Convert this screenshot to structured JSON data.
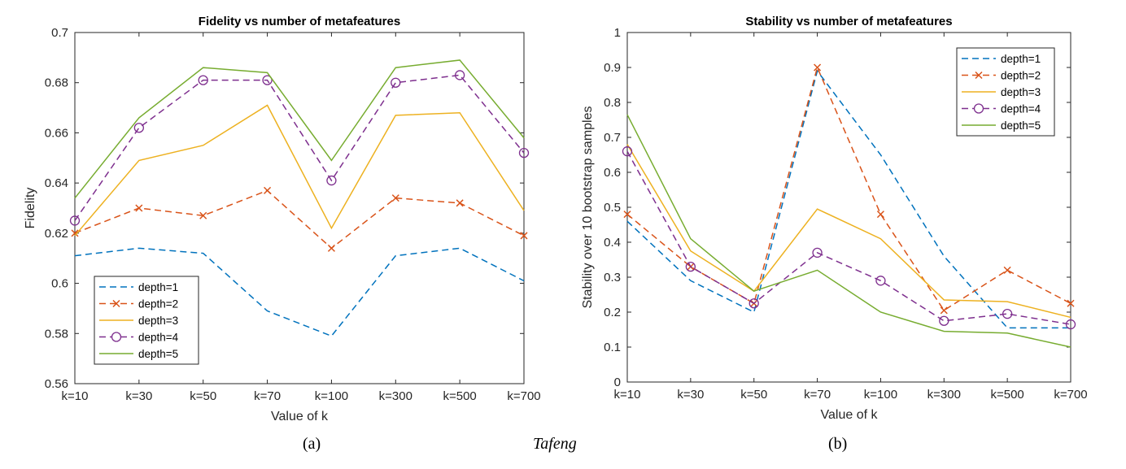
{
  "figure_caption": "Tafeng",
  "chart_data": [
    {
      "type": "line",
      "id": "a",
      "panel_label": "(a)",
      "title": "Fidelity vs number of metafeatures",
      "xlabel": "Value of k",
      "ylabel": "Fidelity",
      "categories": [
        "k=10",
        "k=30",
        "k=50",
        "k=70",
        "k=100",
        "k=300",
        "k=500",
        "k=700"
      ],
      "ylim": [
        0.56,
        0.7
      ],
      "yticks": [
        0.56,
        0.58,
        0.6,
        0.62,
        0.64,
        0.66,
        0.68,
        0.7
      ],
      "ytick_labels": [
        "0.56",
        "0.58",
        "0.6",
        "0.62",
        "0.64",
        "0.66",
        "0.68",
        "0.7"
      ],
      "legend_location": "bottom-left",
      "series": [
        {
          "name": "depth=1",
          "color": "#0072BD",
          "dash": "dashed",
          "marker": "none",
          "values": [
            0.611,
            0.614,
            0.612,
            0.589,
            0.579,
            0.611,
            0.614,
            0.601
          ]
        },
        {
          "name": "depth=2",
          "color": "#D95319",
          "dash": "dashed",
          "marker": "x",
          "values": [
            0.62,
            0.63,
            0.627,
            0.637,
            0.614,
            0.634,
            0.632,
            0.619
          ]
        },
        {
          "name": "depth=3",
          "color": "#EDB120",
          "dash": "solid",
          "marker": "none",
          "values": [
            0.619,
            0.649,
            0.655,
            0.671,
            0.622,
            0.667,
            0.668,
            0.629
          ]
        },
        {
          "name": "depth=4",
          "color": "#7E2F8E",
          "dash": "dashed",
          "marker": "o",
          "values": [
            0.625,
            0.662,
            0.681,
            0.681,
            0.641,
            0.68,
            0.683,
            0.652
          ]
        },
        {
          "name": "depth=5",
          "color": "#77AC30",
          "dash": "solid",
          "marker": "none",
          "values": [
            0.634,
            0.666,
            0.686,
            0.684,
            0.649,
            0.686,
            0.689,
            0.658
          ]
        }
      ]
    },
    {
      "type": "line",
      "id": "b",
      "panel_label": "(b)",
      "title": "Stability vs number of metafeatures",
      "xlabel": "Value of k",
      "ylabel": "Stability over 10 bootstrap samples",
      "categories": [
        "k=10",
        "k=30",
        "k=50",
        "k=70",
        "k=100",
        "k=300",
        "k=500",
        "k=700"
      ],
      "ylim": [
        0,
        1
      ],
      "yticks": [
        0,
        0.1,
        0.2,
        0.3,
        0.4,
        0.5,
        0.6,
        0.7,
        0.8,
        0.9,
        1
      ],
      "ytick_labels": [
        "0",
        "0.1",
        "0.2",
        "0.3",
        "0.4",
        "0.5",
        "0.6",
        "0.7",
        "0.8",
        "0.9",
        "1"
      ],
      "legend_location": "top-right",
      "series": [
        {
          "name": "depth=1",
          "color": "#0072BD",
          "dash": "dashed",
          "marker": "none",
          "values": [
            0.46,
            0.29,
            0.2,
            0.89,
            0.65,
            0.36,
            0.155,
            0.155
          ]
        },
        {
          "name": "depth=2",
          "color": "#D95319",
          "dash": "dashed",
          "marker": "x",
          "values": [
            0.48,
            0.33,
            0.225,
            0.9,
            0.48,
            0.205,
            0.32,
            0.225
          ]
        },
        {
          "name": "depth=3",
          "color": "#EDB120",
          "dash": "solid",
          "marker": "none",
          "values": [
            0.68,
            0.375,
            0.26,
            0.495,
            0.41,
            0.235,
            0.23,
            0.185
          ]
        },
        {
          "name": "depth=4",
          "color": "#7E2F8E",
          "dash": "dashed",
          "marker": "o",
          "values": [
            0.66,
            0.33,
            0.225,
            0.37,
            0.29,
            0.175,
            0.195,
            0.165
          ]
        },
        {
          "name": "depth=5",
          "color": "#77AC30",
          "dash": "solid",
          "marker": "none",
          "values": [
            0.765,
            0.41,
            0.26,
            0.32,
            0.2,
            0.145,
            0.14,
            0.1
          ]
        }
      ]
    }
  ]
}
